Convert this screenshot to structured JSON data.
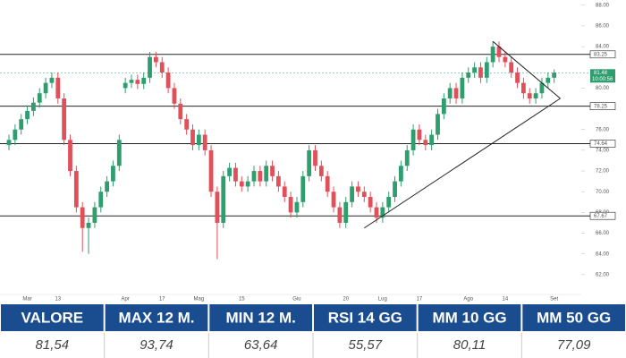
{
  "chart_data": {
    "type": "candlestick",
    "categories": [
      null,
      null,
      null,
      "Mar",
      null,
      null,
      null,
      null,
      "13",
      null,
      null,
      null,
      null,
      null,
      null,
      null,
      null,
      null,
      null,
      "Apr",
      null,
      null,
      null,
      null,
      null,
      "17",
      null,
      null,
      null,
      null,
      null,
      "Mag",
      null,
      null,
      null,
      null,
      null,
      null,
      "15",
      null,
      null,
      null,
      null,
      null,
      null,
      null,
      null,
      "Giu",
      null,
      null,
      null,
      null,
      null,
      null,
      null,
      "20",
      null,
      null,
      null,
      null,
      null,
      "Lug",
      null,
      null,
      null,
      null,
      null,
      "17",
      null,
      null,
      null,
      null,
      null,
      null,
      null,
      "Ago",
      null,
      null,
      null,
      null,
      null,
      "14",
      null,
      null,
      null,
      null,
      null,
      null,
      null,
      "Set"
    ],
    "open": [
      74.5,
      75,
      76,
      77,
      77.8,
      78.6,
      79.5,
      80.5,
      81,
      79,
      75,
      72,
      68.5,
      66.5,
      67,
      68.5,
      70,
      71,
      72.5,
      80,
      80.5,
      80.8,
      80.4,
      81,
      83,
      82.5,
      81.5,
      80,
      78.5,
      77,
      76,
      74.5,
      75.5,
      74,
      70,
      67,
      71.5,
      72.3,
      71,
      70.5,
      71,
      72,
      71,
      72.5,
      71.5,
      70.5,
      69.5,
      68,
      69,
      71.5,
      74,
      72.5,
      71.5,
      70,
      68.5,
      67,
      69,
      70.5,
      70,
      69.5,
      68.5,
      67.5,
      68.5,
      69.5,
      71,
      72.5,
      74,
      76,
      75,
      74.5,
      75.5,
      77.5,
      79,
      80,
      79,
      81,
      81.5,
      82,
      81,
      82.5,
      84,
      83,
      82.5,
      81.5,
      80.5,
      79.5,
      79,
      79.5,
      80.5,
      81
    ],
    "high": [
      75.5,
      76.5,
      77.5,
      78.3,
      79.1,
      80,
      81,
      81.5,
      81.5,
      79.5,
      75.5,
      72.5,
      69,
      67.5,
      69,
      70.5,
      71.5,
      73,
      75.5,
      81,
      81.3,
      81.3,
      81.5,
      83.5,
      83.5,
      83,
      82,
      80.5,
      79,
      77.5,
      76.5,
      76,
      76,
      74.5,
      70.5,
      72,
      72.8,
      72.8,
      71.5,
      71.5,
      72.5,
      72.5,
      73,
      73,
      72,
      71,
      70,
      69.5,
      72,
      74.5,
      74.5,
      73,
      72,
      70.5,
      69,
      69.5,
      71,
      71,
      70.5,
      70,
      69,
      69,
      70,
      71.5,
      73,
      74.5,
      76.5,
      76.5,
      75.5,
      76,
      78,
      79.5,
      80.5,
      80.5,
      81.5,
      82,
      82.5,
      82.5,
      83,
      84.5,
      84.5,
      83.5,
      83,
      82,
      81,
      80,
      80,
      81,
      81.5,
      81.8
    ],
    "low": [
      74,
      74.5,
      75.5,
      76.5,
      77.3,
      78.1,
      79,
      80,
      78.5,
      74.5,
      71.5,
      68,
      64.2,
      64,
      66.5,
      68,
      69.5,
      70.5,
      72,
      79.5,
      80,
      79.9,
      79.9,
      80.5,
      82,
      81,
      79.5,
      78,
      76.5,
      75.5,
      74,
      74,
      73.5,
      69.5,
      63.5,
      66.5,
      71,
      70.5,
      70,
      70,
      70.5,
      70.5,
      70.5,
      71,
      70,
      69,
      67.5,
      67.5,
      68.5,
      71,
      72,
      71,
      69.5,
      68,
      66.5,
      66.5,
      68.5,
      69.5,
      69,
      68,
      67,
      67,
      68,
      69,
      70.5,
      72,
      73.5,
      74.5,
      74,
      74,
      75,
      77,
      78.5,
      78.5,
      78.5,
      80.5,
      81,
      80.5,
      80.5,
      82,
      82.5,
      82,
      81,
      80,
      79,
      78.5,
      78.5,
      79,
      80,
      80.5
    ],
    "close": [
      75,
      76,
      77,
      77.8,
      78.6,
      79.5,
      80.5,
      81,
      79,
      75,
      72,
      68.5,
      66.5,
      67,
      68.5,
      70,
      71,
      72.5,
      75,
      80.5,
      80.8,
      80.4,
      81,
      83,
      82.5,
      81.5,
      80,
      78.5,
      77,
      76,
      74.5,
      75.5,
      74,
      70,
      67,
      71.5,
      72.3,
      71,
      70.5,
      71,
      72,
      71,
      72.5,
      71.5,
      70.5,
      69.5,
      68,
      69,
      71.5,
      74,
      72.5,
      71.5,
      70,
      68.5,
      67,
      69,
      70.5,
      70,
      69.5,
      68.5,
      67.5,
      68.5,
      69.5,
      71,
      72.5,
      74,
      76,
      75,
      74.5,
      75.5,
      77.5,
      79,
      80,
      79,
      81,
      81.5,
      82,
      81,
      82.5,
      84,
      83,
      82.5,
      81.5,
      80.5,
      79.5,
      79,
      79.5,
      80.5,
      81,
      81.48
    ],
    "up_color": "#2e9e6e",
    "down_color": "#e0505a",
    "ylim": [
      60,
      88.5
    ],
    "yticks": [
      {
        "value": 62,
        "label": "62.00"
      },
      {
        "value": 64,
        "label": "64.00"
      },
      {
        "value": 66,
        "label": "66.00"
      },
      {
        "value": 68,
        "label": "68.00"
      },
      {
        "value": 70,
        "label": "70.00"
      },
      {
        "value": 72,
        "label": "72.00"
      },
      {
        "value": 74,
        "label": "74.00"
      },
      {
        "value": 76,
        "label": "76.00"
      },
      {
        "value": 80,
        "label": "80.00"
      },
      {
        "value": 84,
        "label": "84.00"
      },
      {
        "value": 86,
        "label": "86.00"
      },
      {
        "value": 88,
        "label": "88.00"
      }
    ],
    "levels": [
      {
        "value": 83.25,
        "label": "83.25"
      },
      {
        "value": 78.25,
        "label": "78.25"
      },
      {
        "value": 74.64,
        "label": "74.64"
      },
      {
        "value": 67.67,
        "label": "67.67"
      }
    ],
    "last_price": {
      "value": 81.48,
      "label": "81.48"
    },
    "countdown": "10:00:56",
    "trendlines": [
      {
        "x": [
          79,
          90
        ],
        "y": [
          84.5,
          79
        ]
      },
      {
        "x": [
          58,
          90
        ],
        "y": [
          66.5,
          79
        ]
      }
    ]
  },
  "table": {
    "headers": [
      "VALORE",
      "MAX 12 M.",
      "MIN 12 M.",
      "RSI 14 GG",
      "MM 10 GG",
      "MM 50 GG"
    ],
    "values": [
      "81,54",
      "93,74",
      "63,64",
      "55,57",
      "80,11",
      "77,09"
    ]
  }
}
